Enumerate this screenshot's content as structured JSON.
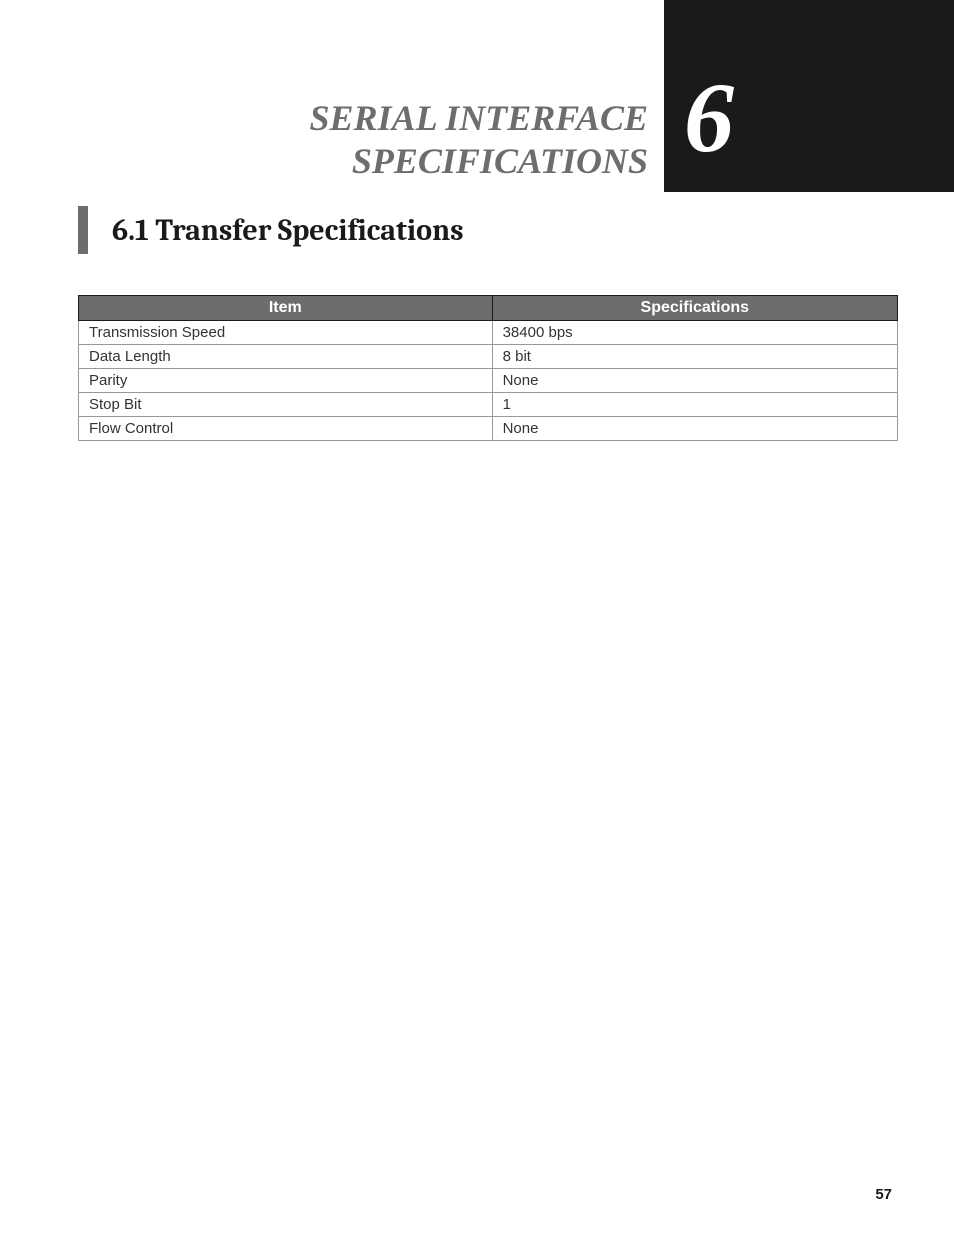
{
  "chapter": {
    "number": "6",
    "title_line1": "SERIAL INTERFACE",
    "title_line2": "SPECIFICATIONS"
  },
  "section": {
    "heading": "6.1 Transfer Specifications"
  },
  "table": {
    "columns": [
      "Item",
      "Specifications"
    ],
    "rows": [
      [
        "Transmission Speed",
        "38400 bps"
      ],
      [
        "Data Length",
        "8 bit"
      ],
      [
        "Parity",
        "None"
      ],
      [
        "Stop Bit",
        "1"
      ],
      [
        "Flow Control",
        "None"
      ]
    ],
    "header_bg": "#6d6d70",
    "header_fg": "#ffffff",
    "border_color": "#1a1a1a",
    "cell_border_color": "#999999",
    "cell_fontsize": 15,
    "header_fontsize": 16
  },
  "page_number": "57",
  "colors": {
    "header_block_bg": "#1a1a1a",
    "chapter_number_color": "#ffffff",
    "chapter_title_color": "#6d6d70",
    "section_bar_color": "#6d6d70",
    "section_heading_color": "#1a1a1a",
    "page_bg": "#ffffff"
  },
  "typography": {
    "chapter_number_fontsize": 100,
    "chapter_title_fontsize": 36,
    "section_heading_fontsize": 30,
    "page_number_fontsize": 15
  }
}
